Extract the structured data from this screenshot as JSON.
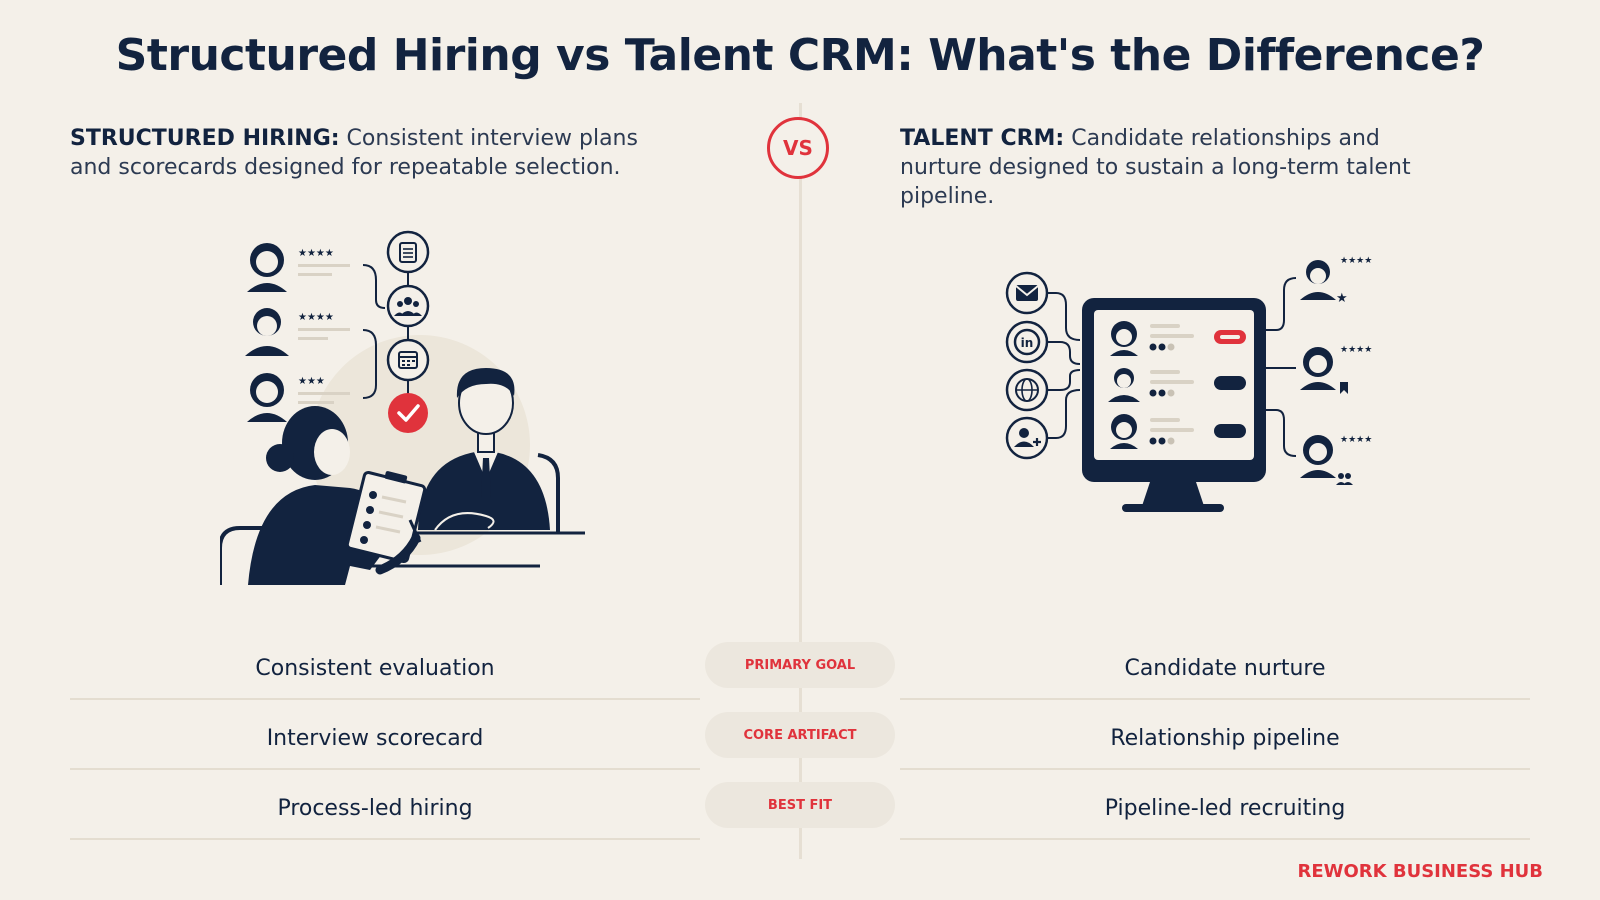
{
  "title": "Structured Hiring vs Talent CRM: What's the Difference?",
  "vs_label": "VS",
  "left": {
    "heading": "STRUCTURED HIRING:",
    "text": " Consistent interview plans and scorecards designed for repeatable selection."
  },
  "right": {
    "heading": "TALENT CRM:",
    "text": " Candidate relationships and nurture designed to sustain a long-term talent pipeline."
  },
  "rows": [
    {
      "label": "PRIMARY GOAL",
      "left": "Consistent evaluation",
      "right": "Candidate nurture"
    },
    {
      "label": "CORE ARTIFACT",
      "left": "Interview scorecard",
      "right": "Relationship pipeline"
    },
    {
      "label": "BEST FIT",
      "left": "Process-led hiring",
      "right": "Pipeline-led recruiting"
    }
  ],
  "brand": "REWORK BUSINESS HUB",
  "colors": {
    "navy": "#12233f",
    "accent": "#e0333c",
    "background": "#f4f0e9"
  },
  "icons": {
    "left": [
      "candidate-avatar-icon",
      "document-icon",
      "team-icon",
      "calendar-icon",
      "checkmark-icon",
      "interviewer-icon",
      "clipboard-icon"
    ],
    "right": [
      "email-icon",
      "linkedin-icon",
      "globe-icon",
      "add-user-icon",
      "monitor-icon",
      "star-icon",
      "bookmark-icon"
    ]
  }
}
